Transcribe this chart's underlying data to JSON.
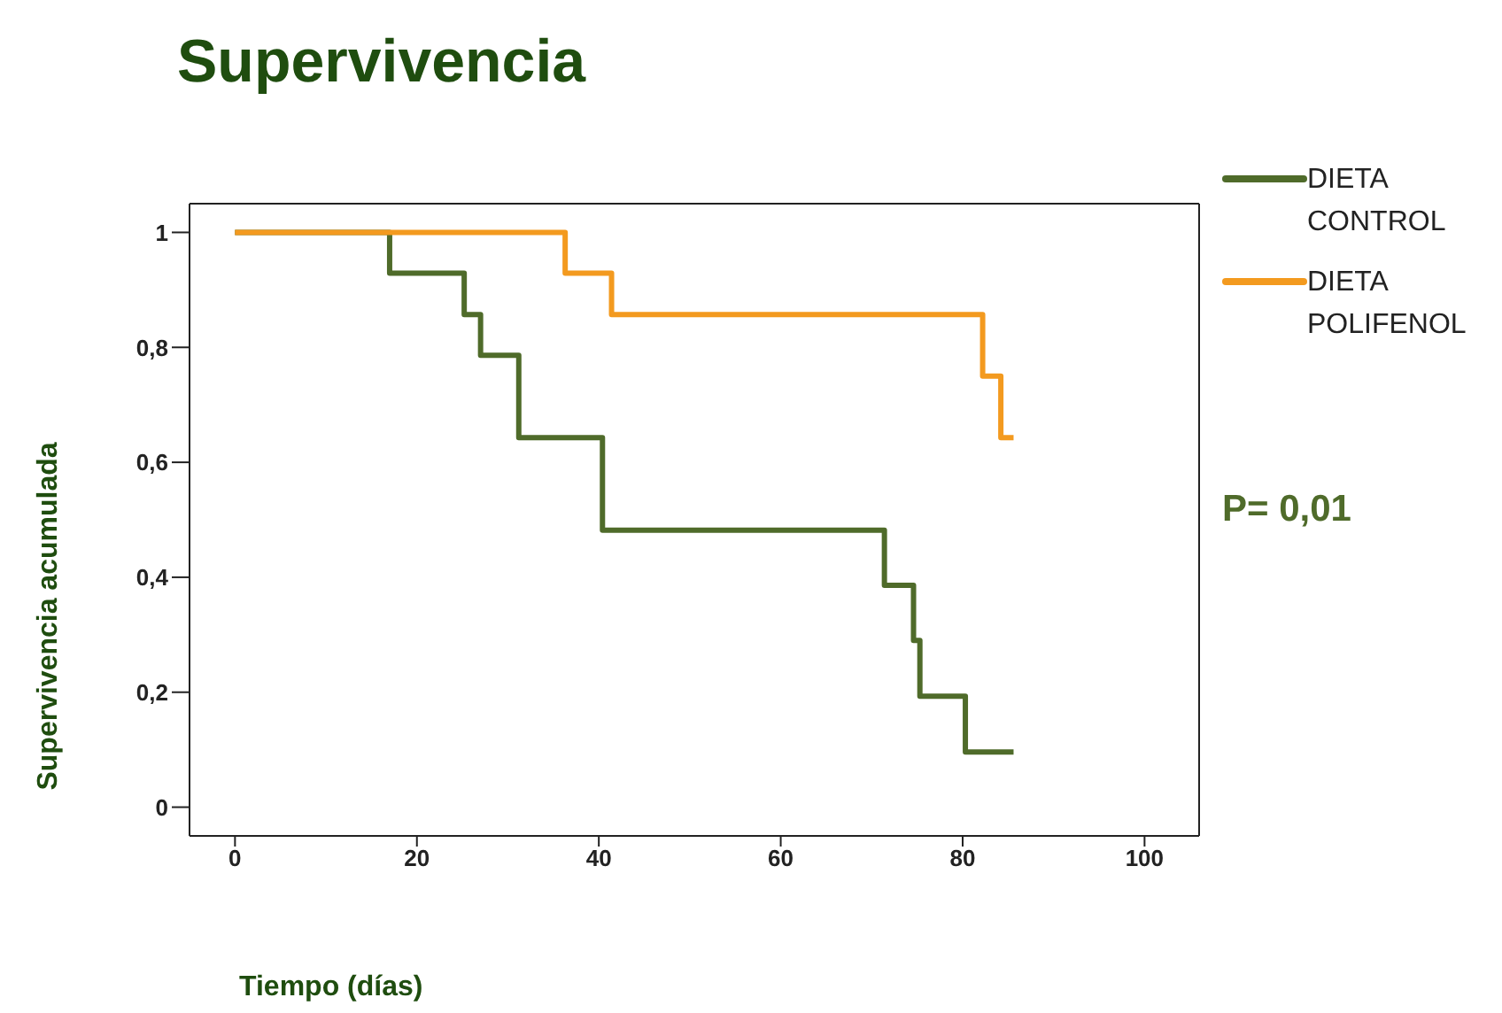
{
  "chart_data": {
    "type": "step",
    "title": "Supervivencia",
    "xlabel": "Tiempo (días)",
    "ylabel": "Supervivencia acumulada",
    "series": [
      {
        "name": "DIETA CONTROL",
        "color": "#4f6b2a",
        "x": [
          0,
          17,
          25.2,
          27,
          31.2,
          40.4,
          71.4,
          74.6,
          75.3,
          80.3,
          85.6
        ],
        "values": [
          1,
          0.929,
          0.857,
          0.786,
          0.643,
          0.482,
          0.386,
          0.29,
          0.193,
          0.096,
          0.096
        ]
      },
      {
        "name": "DIETA POLIFENOL",
        "color": "#f39a1f",
        "x": [
          0,
          36.3,
          41.4,
          82.2,
          84.2,
          85.6
        ],
        "values": [
          1,
          0.929,
          0.857,
          0.75,
          0.643,
          0.643
        ]
      }
    ],
    "xlim": [
      -5,
      106
    ],
    "xticks": [
      0,
      20,
      40,
      60,
      80,
      100
    ],
    "ylim": [
      -0.05,
      1.05
    ],
    "yticks": [
      0,
      {
        "value": 0.2,
        "label": "0,2"
      },
      {
        "value": 0.4,
        "label": "0,4"
      },
      {
        "value": 0.6,
        "label": "0,6"
      },
      {
        "value": 0.8,
        "label": "0,8"
      },
      1
    ],
    "legend": "top right",
    "marker": "none",
    "line_style": "solid",
    "annotations": [
      "P= 0,01"
    ]
  }
}
